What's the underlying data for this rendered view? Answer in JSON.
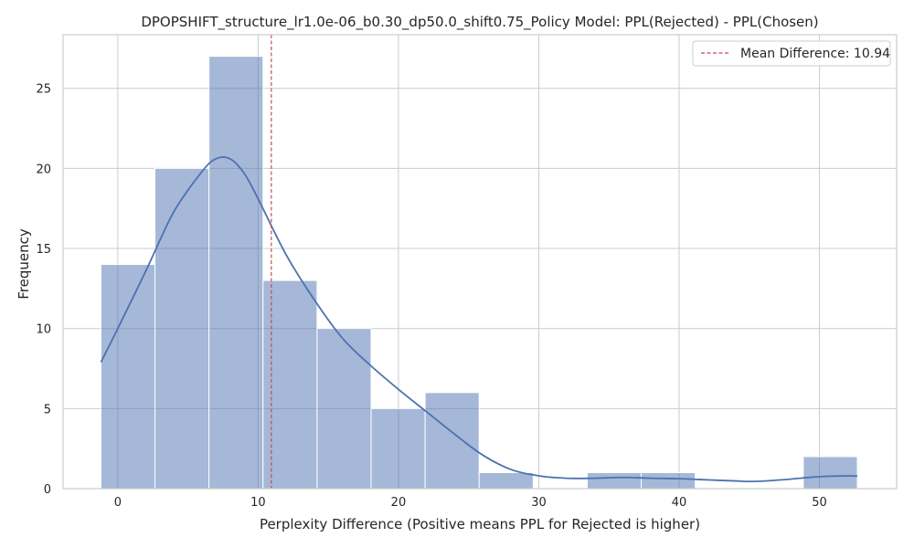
{
  "chart_data": {
    "type": "bar",
    "title": "DPOPSHIFT_structure_lr1.0e-06_b0.30_dp50.0_shift0.75_Policy Model: PPL(Rejected) - PPL(Chosen)",
    "xlabel": "Perplexity Difference (Positive means PPL for Rejected is higher)",
    "ylabel": "Frequency",
    "xlim": [
      -3.9,
      55.5
    ],
    "ylim": [
      0,
      28.35
    ],
    "xticks": [
      0,
      10,
      20,
      30,
      40,
      50
    ],
    "yticks": [
      0,
      5,
      10,
      15,
      20,
      25
    ],
    "grid": true,
    "bins": [
      {
        "start": -1.2,
        "end": 2.65,
        "count": 14
      },
      {
        "start": 2.65,
        "end": 6.5,
        "count": 20
      },
      {
        "start": 6.5,
        "end": 10.35,
        "count": 27
      },
      {
        "start": 10.35,
        "end": 14.2,
        "count": 13
      },
      {
        "start": 14.2,
        "end": 18.05,
        "count": 10
      },
      {
        "start": 18.05,
        "end": 21.9,
        "count": 5
      },
      {
        "start": 21.9,
        "end": 25.75,
        "count": 6
      },
      {
        "start": 25.75,
        "end": 29.6,
        "count": 1
      },
      {
        "start": 29.6,
        "end": 33.45,
        "count": 0
      },
      {
        "start": 33.45,
        "end": 37.3,
        "count": 1
      },
      {
        "start": 37.3,
        "end": 41.15,
        "count": 1
      },
      {
        "start": 41.15,
        "end": 45.0,
        "count": 0
      },
      {
        "start": 45.0,
        "end": 48.85,
        "count": 0
      },
      {
        "start": 48.85,
        "end": 52.7,
        "count": 2
      }
    ],
    "kde": {
      "x": [
        -1.2,
        0,
        2,
        4,
        6,
        7,
        8,
        9,
        10,
        12,
        14,
        16,
        18,
        20,
        22,
        24,
        26,
        28,
        30,
        32,
        34,
        36,
        38,
        40,
        42,
        44,
        45,
        46,
        48,
        50,
        52,
        52.7
      ],
      "y": [
        7.9,
        10.0,
        13.6,
        17.3,
        19.8,
        20.6,
        20.6,
        19.7,
        18.1,
        14.6,
        11.8,
        9.4,
        7.7,
        6.2,
        4.8,
        3.4,
        2.1,
        1.2,
        0.8,
        0.65,
        0.65,
        0.7,
        0.65,
        0.62,
        0.55,
        0.48,
        0.45,
        0.47,
        0.6,
        0.75,
        0.8,
        0.78
      ]
    },
    "mean_line": {
      "value": 10.94,
      "label": "Mean Difference: 10.94",
      "color": "#c44e52"
    },
    "legend_placement": "top-right",
    "colors": {
      "bar": "#4c72b0",
      "kde": "#4c72b0",
      "grid": "#cccccc",
      "axes": "#cccccc"
    }
  }
}
